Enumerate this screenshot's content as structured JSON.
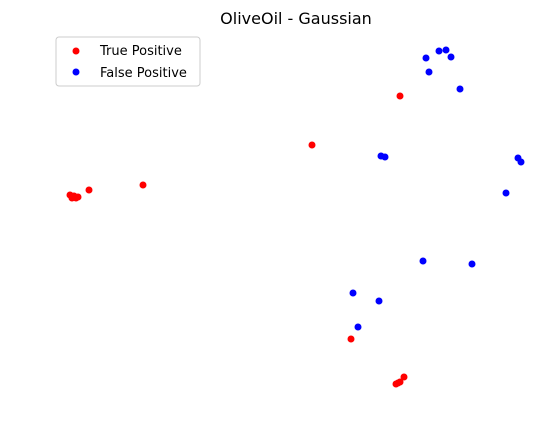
{
  "chart_data": {
    "type": "scatter",
    "title": "OliveOil - Gaussian",
    "xlabel": "",
    "ylabel": "",
    "axes_visible": false,
    "grid": false,
    "legend_position": "top-left",
    "series": [
      {
        "name": "True Positive",
        "color": "#ff0000",
        "points": [
          [
            70,
            195
          ],
          [
            72,
            198
          ],
          [
            74,
            196
          ],
          [
            76,
            198
          ],
          [
            78,
            197
          ],
          [
            89,
            190
          ],
          [
            143,
            185
          ],
          [
            312,
            145
          ],
          [
            400,
            96
          ],
          [
            351,
            339
          ],
          [
            396,
            384
          ],
          [
            398,
            383
          ],
          [
            400,
            382
          ],
          [
            404,
            377
          ]
        ]
      },
      {
        "name": "False Positive",
        "color": "#0000ff",
        "points": [
          [
            426,
            58
          ],
          [
            439,
            51
          ],
          [
            446,
            50
          ],
          [
            451,
            57
          ],
          [
            429,
            72
          ],
          [
            460,
            89
          ],
          [
            381,
            156
          ],
          [
            385,
            157
          ],
          [
            518,
            158
          ],
          [
            521,
            162
          ],
          [
            506,
            193
          ],
          [
            423,
            261
          ],
          [
            472,
            264
          ],
          [
            353,
            293
          ],
          [
            379,
            301
          ],
          [
            358,
            327
          ]
        ]
      }
    ]
  }
}
